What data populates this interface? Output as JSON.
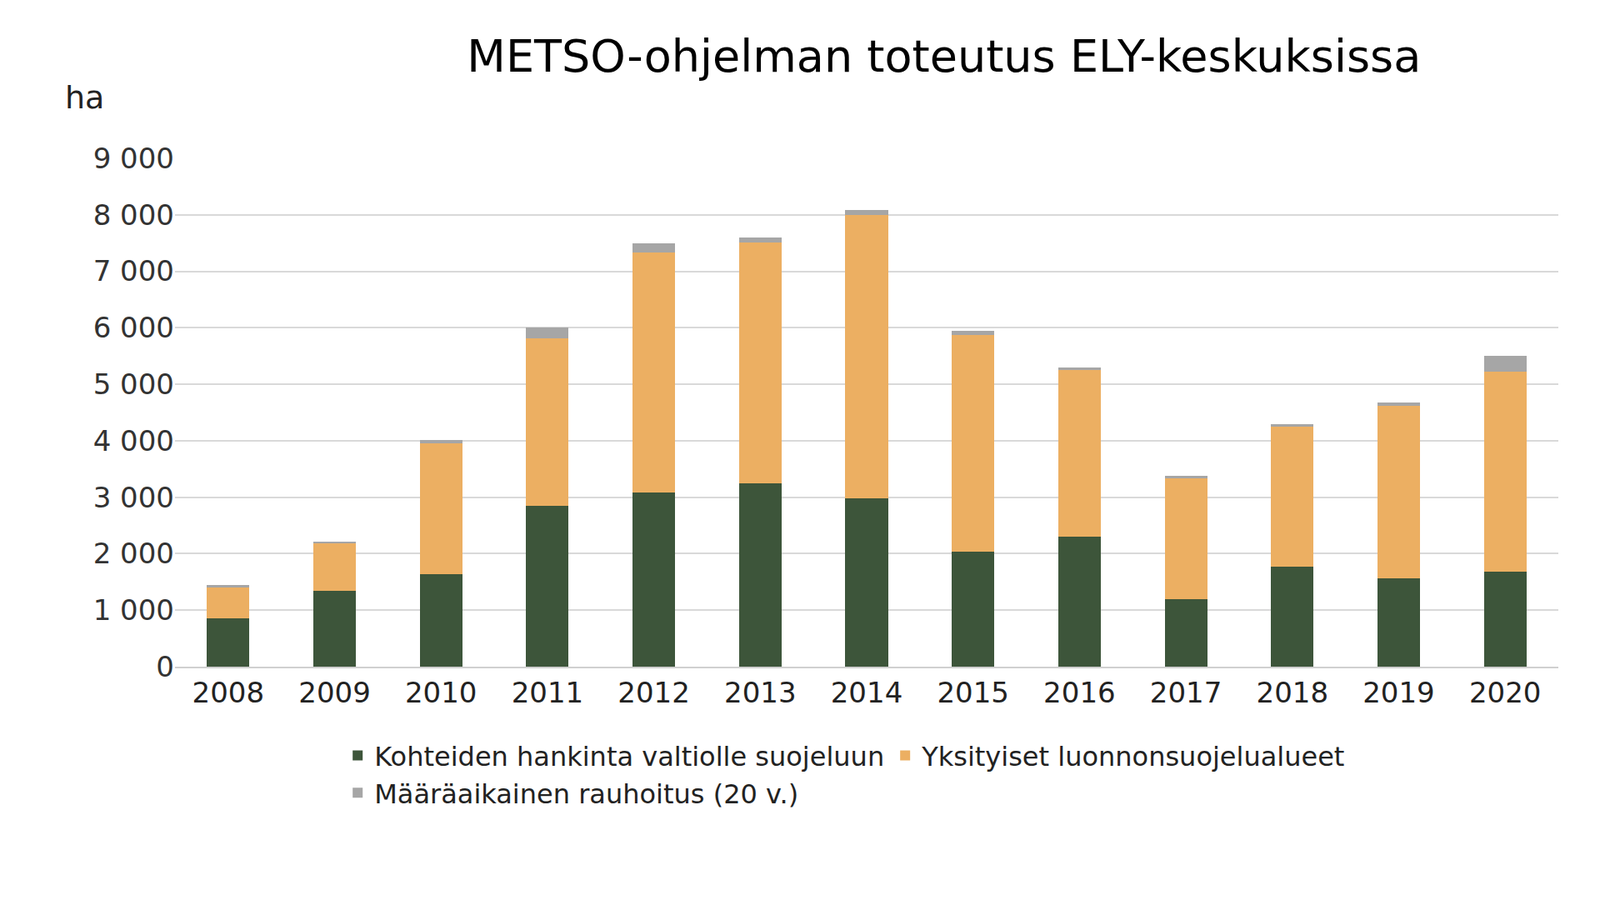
{
  "chart_data": {
    "type": "bar",
    "title": "METSO-ohjelman toteutus ELY-keskuksissa",
    "ylabel": "ha",
    "stacked": true,
    "grid": true,
    "legend": "bottom",
    "categories": [
      "2008",
      "2009",
      "2010",
      "2011",
      "2012",
      "2013",
      "2014",
      "2015",
      "2016",
      "2017",
      "2018",
      "2019",
      "2020"
    ],
    "series": [
      {
        "name": "Kohteiden hankinta valtiolle suojeluun",
        "color": "#3d553a",
        "values": [
          850,
          1340,
          1640,
          2850,
          3080,
          3250,
          2980,
          2040,
          2300,
          1190,
          1770,
          1570,
          1680
        ]
      },
      {
        "name": "Yksityiset luonnonsuojelualueet",
        "color": "#ecaf62",
        "values": [
          550,
          850,
          2320,
          2960,
          4260,
          4260,
          5020,
          3830,
          2950,
          2150,
          2480,
          3050,
          3550
        ]
      },
      {
        "name": "Määräaikainen rauhoitus (20 v.)",
        "color": "#a6a6a6",
        "values": [
          40,
          20,
          60,
          190,
          150,
          90,
          90,
          70,
          50,
          40,
          50,
          60,
          280
        ]
      }
    ],
    "ylim": [
      0,
      9000
    ],
    "yticks": [
      0,
      {
        "value": 1000,
        "label": "1 000"
      },
      {
        "value": 2000,
        "label": "2 000"
      },
      {
        "value": 3000,
        "label": "3 000"
      },
      {
        "value": 4000,
        "label": "4 000"
      },
      {
        "value": 5000,
        "label": "5 000"
      },
      {
        "value": 6000,
        "label": "6 000"
      },
      {
        "value": 7000,
        "label": "7 000"
      },
      {
        "value": 8000,
        "label": "8 000"
      },
      {
        "value": 9000,
        "label": "9 000"
      }
    ]
  }
}
